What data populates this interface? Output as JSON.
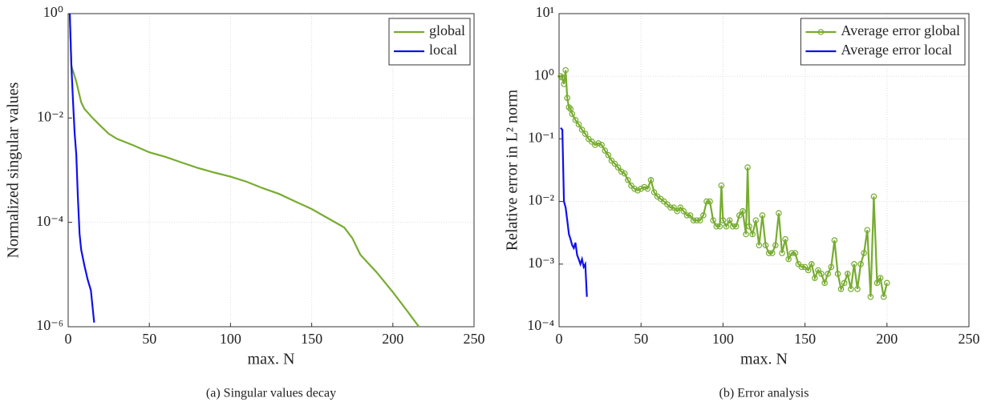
{
  "chart_data": [
    {
      "type": "line",
      "caption": "(a) Singular values decay",
      "xlabel": "max. N",
      "ylabel": "Normalized singular values",
      "log_y": true,
      "grid": true,
      "legend": "upper right",
      "xlim": [
        0,
        250
      ],
      "xticks": [
        0,
        50,
        100,
        150,
        200,
        250
      ],
      "ylim": [
        1e-06,
        1
      ],
      "yticks": [
        {
          "value": 1e-06,
          "label": "10⁻⁶"
        },
        {
          "value": 0.0001,
          "label": "10⁻⁴"
        },
        {
          "value": 0.01,
          "label": "10⁻²"
        },
        {
          "value": 1,
          "label": "10⁰"
        }
      ],
      "series": [
        {
          "name": "global",
          "color": "#77ac30",
          "x": [
            1,
            2,
            5,
            8,
            10,
            15,
            20,
            25,
            30,
            40,
            50,
            60,
            70,
            80,
            90,
            100,
            110,
            120,
            130,
            140,
            150,
            160,
            170,
            175,
            180,
            190,
            200,
            210,
            216
          ],
          "values": [
            1,
            0.1,
            0.05,
            0.02,
            0.015,
            0.01,
            0.007,
            0.005,
            0.004,
            0.003,
            0.0022,
            0.0018,
            0.0014,
            0.0011,
            0.0009,
            0.00075,
            0.0006,
            0.00045,
            0.00035,
            0.00025,
            0.00018,
            0.00012,
            8e-05,
            5e-05,
            2.4e-05,
            1.1e-05,
            4.6e-06,
            1.8e-06,
            1e-06
          ]
        },
        {
          "name": "local",
          "color": "#1010ee",
          "x": [
            1,
            2,
            3,
            4,
            5,
            6,
            7,
            8,
            10,
            12,
            14,
            16
          ],
          "values": [
            1,
            0.1,
            0.02,
            0.005,
            0.002,
            0.0003,
            6e-05,
            3e-05,
            1.5e-05,
            8e-06,
            5e-06,
            1.2e-06
          ]
        }
      ]
    },
    {
      "type": "line",
      "caption": "(b) Error analysis",
      "xlabel": "max. N",
      "ylabel": "Relative error in L² norm",
      "log_y": true,
      "grid": true,
      "legend": "upper right",
      "xlim": [
        0,
        250
      ],
      "xticks": [
        0,
        50,
        100,
        150,
        200,
        250
      ],
      "ylim": [
        0.0001,
        10
      ],
      "yticks": [
        {
          "value": 0.0001,
          "label": "10⁻⁴"
        },
        {
          "value": 0.001,
          "label": "10⁻³"
        },
        {
          "value": 0.01,
          "label": "10⁻²"
        },
        {
          "value": 0.1,
          "label": "10⁻¹"
        },
        {
          "value": 1,
          "label": "10⁰"
        },
        {
          "value": 10,
          "label": "10¹"
        }
      ],
      "series": [
        {
          "name": "Average error global",
          "color": "#77ac30",
          "marker": "circle",
          "x": [
            1,
            2,
            3,
            4,
            5,
            6,
            7,
            8,
            10,
            12,
            14,
            16,
            18,
            20,
            22,
            24,
            26,
            28,
            30,
            32,
            34,
            36,
            38,
            40,
            42,
            44,
            46,
            48,
            50,
            52,
            54,
            56,
            58,
            60,
            62,
            64,
            66,
            68,
            70,
            72,
            74,
            76,
            78,
            80,
            82,
            84,
            86,
            88,
            90,
            92,
            94,
            96,
            98,
            99,
            100,
            102,
            104,
            106,
            108,
            110,
            112,
            114,
            115,
            116,
            118,
            120,
            122,
            124,
            126,
            128,
            130,
            132,
            134,
            136,
            138,
            140,
            142,
            144,
            146,
            148,
            150,
            152,
            154,
            156,
            158,
            160,
            162,
            164,
            166,
            168,
            170,
            172,
            174,
            176,
            178,
            180,
            182,
            184,
            186,
            188,
            190,
            192,
            194,
            196,
            198,
            200
          ],
          "values": [
            1.0,
            0.95,
            0.75,
            1.25,
            0.45,
            0.32,
            0.3,
            0.25,
            0.2,
            0.17,
            0.14,
            0.12,
            0.1,
            0.09,
            0.08,
            0.085,
            0.08,
            0.065,
            0.055,
            0.045,
            0.04,
            0.035,
            0.03,
            0.028,
            0.022,
            0.018,
            0.016,
            0.015,
            0.016,
            0.017,
            0.016,
            0.022,
            0.014,
            0.012,
            0.011,
            0.01,
            0.009,
            0.008,
            0.008,
            0.007,
            0.008,
            0.007,
            0.006,
            0.006,
            0.005,
            0.005,
            0.005,
            0.006,
            0.01,
            0.01,
            0.005,
            0.004,
            0.004,
            0.018,
            0.005,
            0.004,
            0.005,
            0.004,
            0.004,
            0.006,
            0.007,
            0.003,
            0.035,
            0.004,
            0.003,
            0.005,
            0.002,
            0.006,
            0.002,
            0.0015,
            0.0015,
            0.002,
            0.0065,
            0.0015,
            0.0025,
            0.0012,
            0.0015,
            0.0015,
            0.001,
            0.0009,
            0.0009,
            0.0008,
            0.001,
            0.0006,
            0.0008,
            0.0007,
            0.0005,
            0.0007,
            0.0009,
            0.0024,
            0.0007,
            0.0004,
            0.0005,
            0.0007,
            0.0004,
            0.001,
            0.0004,
            0.001,
            0.0015,
            0.0035,
            0.0003,
            0.012,
            0.0005,
            0.0006,
            0.0003,
            0.0005
          ]
        },
        {
          "name": "Average error local",
          "color": "#1010ee",
          "x": [
            1,
            2,
            3,
            4,
            5,
            6,
            7,
            8,
            9,
            10,
            11,
            12,
            13,
            14,
            15,
            16,
            17
          ],
          "values": [
            0.15,
            0.14,
            0.01,
            0.008,
            0.005,
            0.003,
            0.0025,
            0.002,
            0.0018,
            0.0022,
            0.0014,
            0.0012,
            0.001,
            0.0012,
            0.0009,
            0.001,
            0.0003
          ]
        }
      ]
    }
  ]
}
